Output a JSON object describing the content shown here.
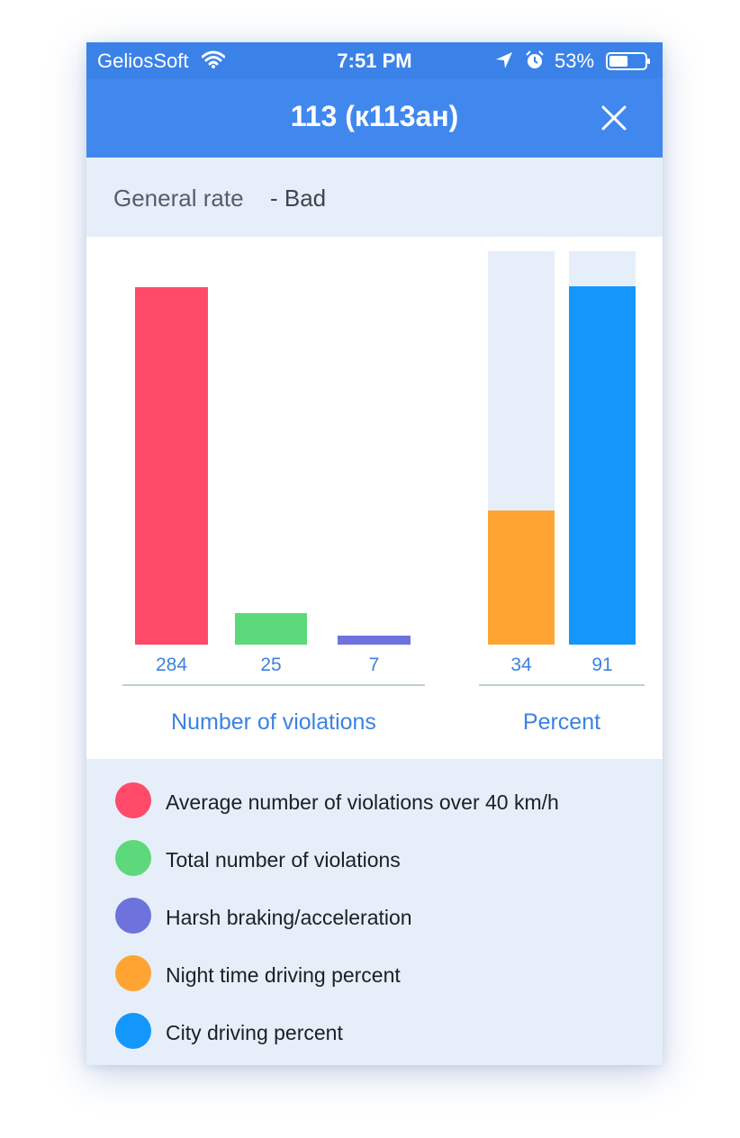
{
  "status_bar": {
    "carrier": "GeliosSoft",
    "time": "7:51 PM",
    "battery_percent": "53%",
    "battery_level": 0.53
  },
  "header": {
    "title": "113 (к113ан)"
  },
  "general_rate": {
    "label": "General rate",
    "value": "- Bad"
  },
  "chart_data": [
    {
      "type": "bar",
      "group_label": "Number of violations",
      "categories": [
        "Average number of violations over 40 km/h",
        "Total number of violations",
        "Harsh braking/acceleration"
      ],
      "values": [
        284,
        25,
        7
      ],
      "value_labels": [
        "284",
        "25",
        "7"
      ],
      "colors": [
        "#ff4a6a",
        "#5dd87b",
        "#6e72dc"
      ]
    },
    {
      "type": "bar",
      "group_label": "Percent",
      "categories": [
        "Night time driving percent",
        "City driving percent"
      ],
      "values": [
        34,
        91
      ],
      "value_labels": [
        "34",
        "91"
      ],
      "ylim": [
        0,
        100
      ],
      "colors": [
        "#ffa433",
        "#1497fb"
      ]
    }
  ],
  "legend": [
    {
      "label": "Average number of violations over 40 km/h",
      "color": "#ff4a6a"
    },
    {
      "label": "Total number of violations",
      "color": "#5dd87b"
    },
    {
      "label": "Harsh braking/acceleration",
      "color": "#6e72dc"
    },
    {
      "label": "Night time driving percent",
      "color": "#ffa433"
    },
    {
      "label": "City driving percent",
      "color": "#1497fb"
    }
  ]
}
